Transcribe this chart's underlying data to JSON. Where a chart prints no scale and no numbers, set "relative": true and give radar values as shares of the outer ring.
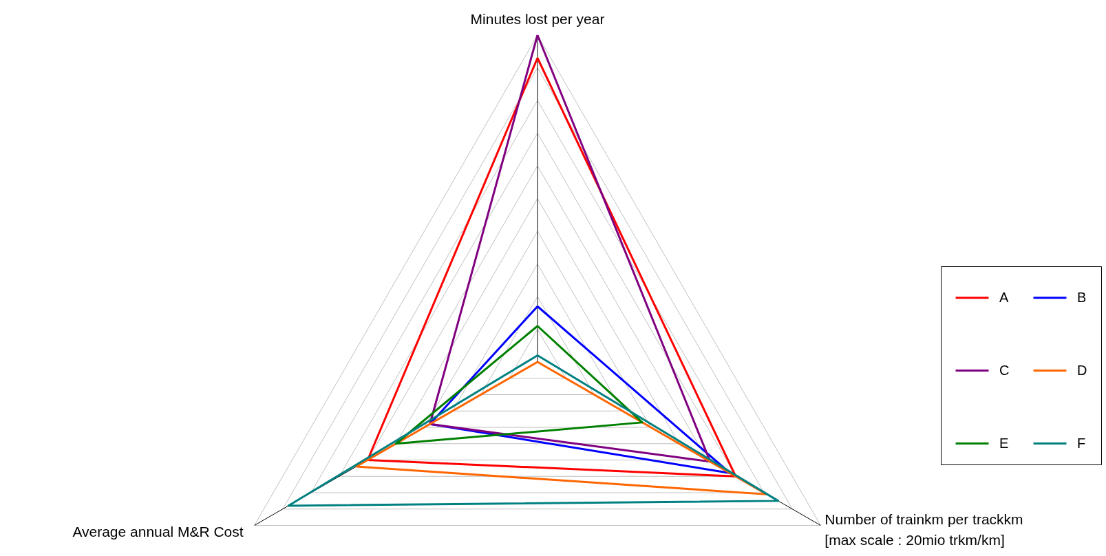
{
  "chart_data": {
    "type": "radar",
    "categories": [
      "Minutes lost per year",
      "Number of trainkm per trackkm\n[max scale : 20mio trkm/km]",
      "Average annual M&R Cost"
    ],
    "relative": true,
    "grid": true,
    "legend": "right",
    "series": [
      {
        "name": "A",
        "color": "#ff0000",
        "values": [
          0.93,
          0.7,
          0.6
        ]
      },
      {
        "name": "B",
        "color": "#0000ff",
        "values": [
          0.17,
          0.68,
          0.38
        ]
      },
      {
        "name": "C",
        "color": "#800080",
        "values": [
          1.0,
          0.61,
          0.38
        ]
      },
      {
        "name": "D",
        "color": "#ff6600",
        "values": [
          0.0,
          0.81,
          0.64
        ]
      },
      {
        "name": "E",
        "color": "#008000",
        "values": [
          0.11,
          0.37,
          0.5
        ]
      },
      {
        "name": "F",
        "color": "#008080",
        "values": [
          0.02,
          0.85,
          0.88
        ]
      }
    ]
  }
}
